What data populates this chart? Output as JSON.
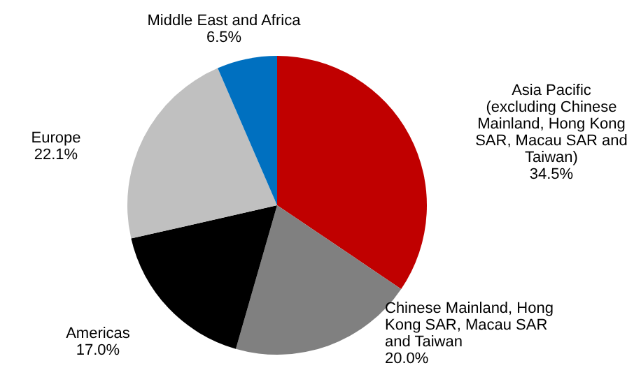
{
  "chart_data": {
    "type": "pie",
    "categories": [
      "Asia Pacific (excluding Chinese Mainland, Hong Kong SAR,  Macau SAR and Taiwan)",
      "Chinese Mainland, Hong Kong SAR,  Macau SAR and Taiwan",
      "Americas",
      "Europe",
      "Middle East and Africa"
    ],
    "values": [
      34.5,
      20.0,
      17.0,
      22.1,
      6.5
    ],
    "value_labels": [
      "34.5%",
      "20.0%",
      "17.0%",
      "22.1%",
      "6.5%"
    ],
    "colors": [
      "#c00000",
      "#808080",
      "#000000",
      "#c0c0c0",
      "#0070c0"
    ],
    "legend": false
  }
}
